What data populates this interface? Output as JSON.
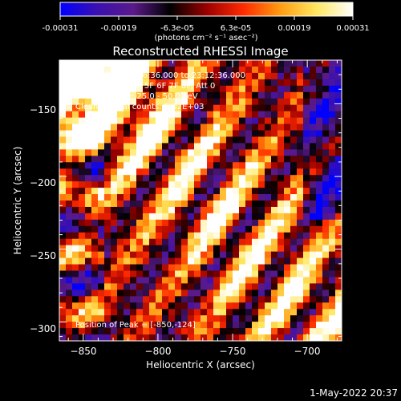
{
  "colorbar": {
    "stops": [
      "#0000ff",
      "#3a10b0",
      "#5a1a8a",
      "#000000",
      "#9a0000",
      "#ff2a00",
      "#ff9a10",
      "#ffe860",
      "#ffffff"
    ],
    "tick_labels": [
      "-0.00031",
      "-0.00019",
      "-6.3e-05",
      "6.3e-05",
      "0.00019",
      "0.00031"
    ],
    "units_label": "(photons cm⁻² s⁻¹ asec⁻²)"
  },
  "chart_data": {
    "type": "heatmap",
    "title": "Reconstructed RHESSI Image",
    "xlabel": "Heliocentric X (arcsec)",
    "ylabel": "Heliocentric Y (arcsec)",
    "xlim": [
      -866,
      -677
    ],
    "ylim": [
      -313,
      -120
    ],
    "x_ticks": [
      -850,
      -800,
      -750,
      -700
    ],
    "y_ticks": [
      -150,
      -200,
      -250,
      -300
    ],
    "x_tick_labels": [
      "−850",
      "−800",
      "−750",
      "−700"
    ],
    "y_tick_labels": [
      "−150",
      "−200",
      "−250",
      "−300"
    ],
    "value_range": [
      -0.00031,
      0.00031
    ],
    "annotations": [
      "11-Jul-2004 23:06:36.000 to 23:12:36.000",
      "Detectors: 3F 4F 5F 6F 7F 8F, Att 0",
      "Energy Range: 25.0 - 50.0 keV",
      "Clean     Total counts: 5.02E+03"
    ],
    "peak_label": "Position of Peak = [-850,-124]"
  },
  "timestamp": "1-May-2022 20:37"
}
